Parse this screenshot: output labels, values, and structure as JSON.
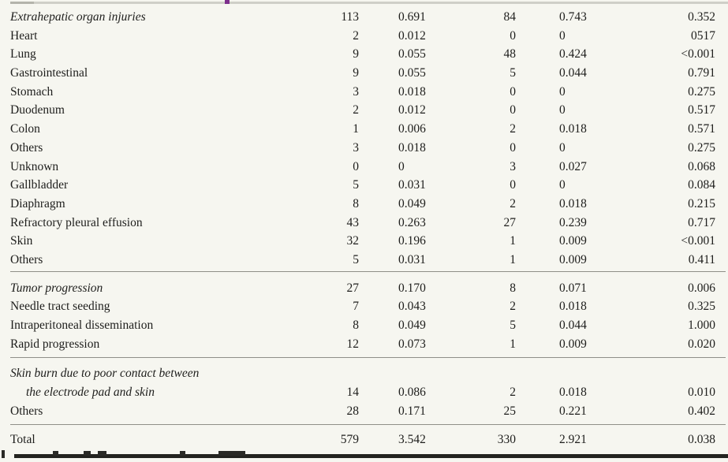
{
  "colors": {
    "background": "#f6f6f0",
    "text": "#1e1e1c",
    "thin_rule": "#8f8f88",
    "top_rule": "#cfcfc8",
    "bottom_rule": "#23231f",
    "accent_purple_tick": "#7d2f8d"
  },
  "table": {
    "sections": [
      {
        "rows": [
          {
            "label": "Extrahepatic organ injuries",
            "italic": true,
            "indent": false,
            "values": [
              "113",
              "0.691",
              "84",
              "0.743",
              "0.352"
            ]
          },
          {
            "label": "Heart",
            "italic": false,
            "indent": false,
            "values": [
              "2",
              "0.012",
              "0",
              "0",
              "0517"
            ]
          },
          {
            "label": "Lung",
            "italic": false,
            "indent": false,
            "values": [
              "9",
              "0.055",
              "48",
              "0.424",
              "<0.001"
            ]
          },
          {
            "label": "Gastrointestinal",
            "italic": false,
            "indent": false,
            "values": [
              "9",
              "0.055",
              "5",
              "0.044",
              "0.791"
            ]
          },
          {
            "label": "Stomach",
            "italic": false,
            "indent": false,
            "values": [
              "3",
              "0.018",
              "0",
              "0",
              "0.275"
            ]
          },
          {
            "label": "Duodenum",
            "italic": false,
            "indent": false,
            "values": [
              "2",
              "0.012",
              "0",
              "0",
              "0.517"
            ]
          },
          {
            "label": "Colon",
            "italic": false,
            "indent": false,
            "values": [
              "1",
              "0.006",
              "2",
              "0.018",
              "0.571"
            ]
          },
          {
            "label": "Others",
            "italic": false,
            "indent": false,
            "values": [
              "3",
              "0.018",
              "0",
              "0",
              "0.275"
            ]
          },
          {
            "label": "Unknown",
            "italic": false,
            "indent": false,
            "values": [
              "0",
              "0",
              "3",
              "0.027",
              "0.068"
            ]
          },
          {
            "label": "Gallbladder",
            "italic": false,
            "indent": false,
            "values": [
              "5",
              "0.031",
              "0",
              "0",
              "0.084"
            ]
          },
          {
            "label": "Diaphragm",
            "italic": false,
            "indent": false,
            "values": [
              "8",
              "0.049",
              "2",
              "0.018",
              "0.215"
            ]
          },
          {
            "label": "Refractory pleural effusion",
            "italic": false,
            "indent": false,
            "values": [
              "43",
              "0.263",
              "27",
              "0.239",
              "0.717"
            ]
          },
          {
            "label": "Skin",
            "italic": false,
            "indent": false,
            "values": [
              "32",
              "0.196",
              "1",
              "0.009",
              "<0.001"
            ]
          },
          {
            "label": "Others",
            "italic": false,
            "indent": false,
            "values": [
              "5",
              "0.031",
              "1",
              "0.009",
              "0.411"
            ]
          }
        ]
      },
      {
        "rows": [
          {
            "label": "Tumor progression",
            "italic": true,
            "indent": false,
            "values": [
              "27",
              "0.170",
              "8",
              "0.071",
              "0.006"
            ]
          },
          {
            "label": "Needle tract seeding",
            "italic": false,
            "indent": false,
            "values": [
              "7",
              "0.043",
              "2",
              "0.018",
              "0.325"
            ]
          },
          {
            "label": "Intraperitoneal dissemination",
            "italic": false,
            "indent": false,
            "values": [
              "8",
              "0.049",
              "5",
              "0.044",
              "1.000"
            ]
          },
          {
            "label": "Rapid progression",
            "italic": false,
            "indent": false,
            "values": [
              "12",
              "0.073",
              "1",
              "0.009",
              "0.020"
            ]
          }
        ]
      },
      {
        "rows": [
          {
            "label": "Skin burn due to poor contact between",
            "italic": true,
            "indent": false,
            "values": [
              "",
              "",
              "",
              "",
              ""
            ]
          },
          {
            "label": "the electrode pad and skin",
            "italic": true,
            "indent": true,
            "values": [
              "14",
              "0.086",
              "2",
              "0.018",
              "0.010"
            ]
          },
          {
            "label": "Others",
            "italic": false,
            "indent": false,
            "values": [
              "28",
              "0.171",
              "25",
              "0.221",
              "0.402"
            ]
          }
        ]
      }
    ],
    "total_row": {
      "label": "Total",
      "italic": false,
      "indent": false,
      "values": [
        "579",
        "3.542",
        "330",
        "2.921",
        "0.038"
      ]
    }
  }
}
